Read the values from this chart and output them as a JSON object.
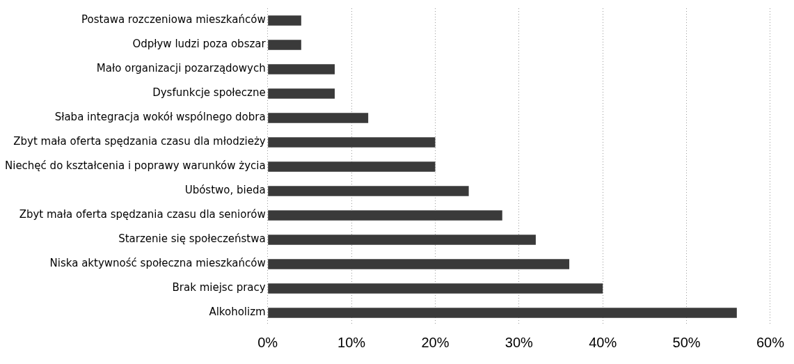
{
  "chart_data": {
    "type": "bar",
    "orientation": "horizontal",
    "categories": [
      "Postawa rozczeniowa mieszkańców",
      "Odpływ ludzi poza obszar",
      "Mało organizacji pozarządowych",
      "Dysfunkcje społeczne",
      "Słaba integracja wokół wspólnego dobra",
      "Zbyt mała oferta spędzania czasu dla młodzieży",
      "Niechęć do kształcenia i poprawy warunków życia",
      "Ubóstwo, bieda",
      "Zbyt mała oferta spędzania czasu dla seniorów",
      "Starzenie się społeczeństwa",
      "Niska aktywność społeczna mieszkańców",
      "Brak miejsc pracy",
      "Alkoholizm"
    ],
    "values": [
      4,
      4,
      8,
      8,
      12,
      20,
      20,
      24,
      28,
      32,
      36,
      40,
      56
    ],
    "color": "#3a3a3a",
    "xlim": [
      0,
      60
    ],
    "xticks": [
      {
        "value": 0,
        "label": "0%"
      },
      {
        "value": 10,
        "label": "10%"
      },
      {
        "value": 20,
        "label": "20%"
      },
      {
        "value": 30,
        "label": "30%"
      },
      {
        "value": 40,
        "label": "40%"
      },
      {
        "value": 50,
        "label": "50%"
      },
      {
        "value": 60,
        "label": "60%"
      }
    ],
    "grid": "x",
    "legend": false
  }
}
